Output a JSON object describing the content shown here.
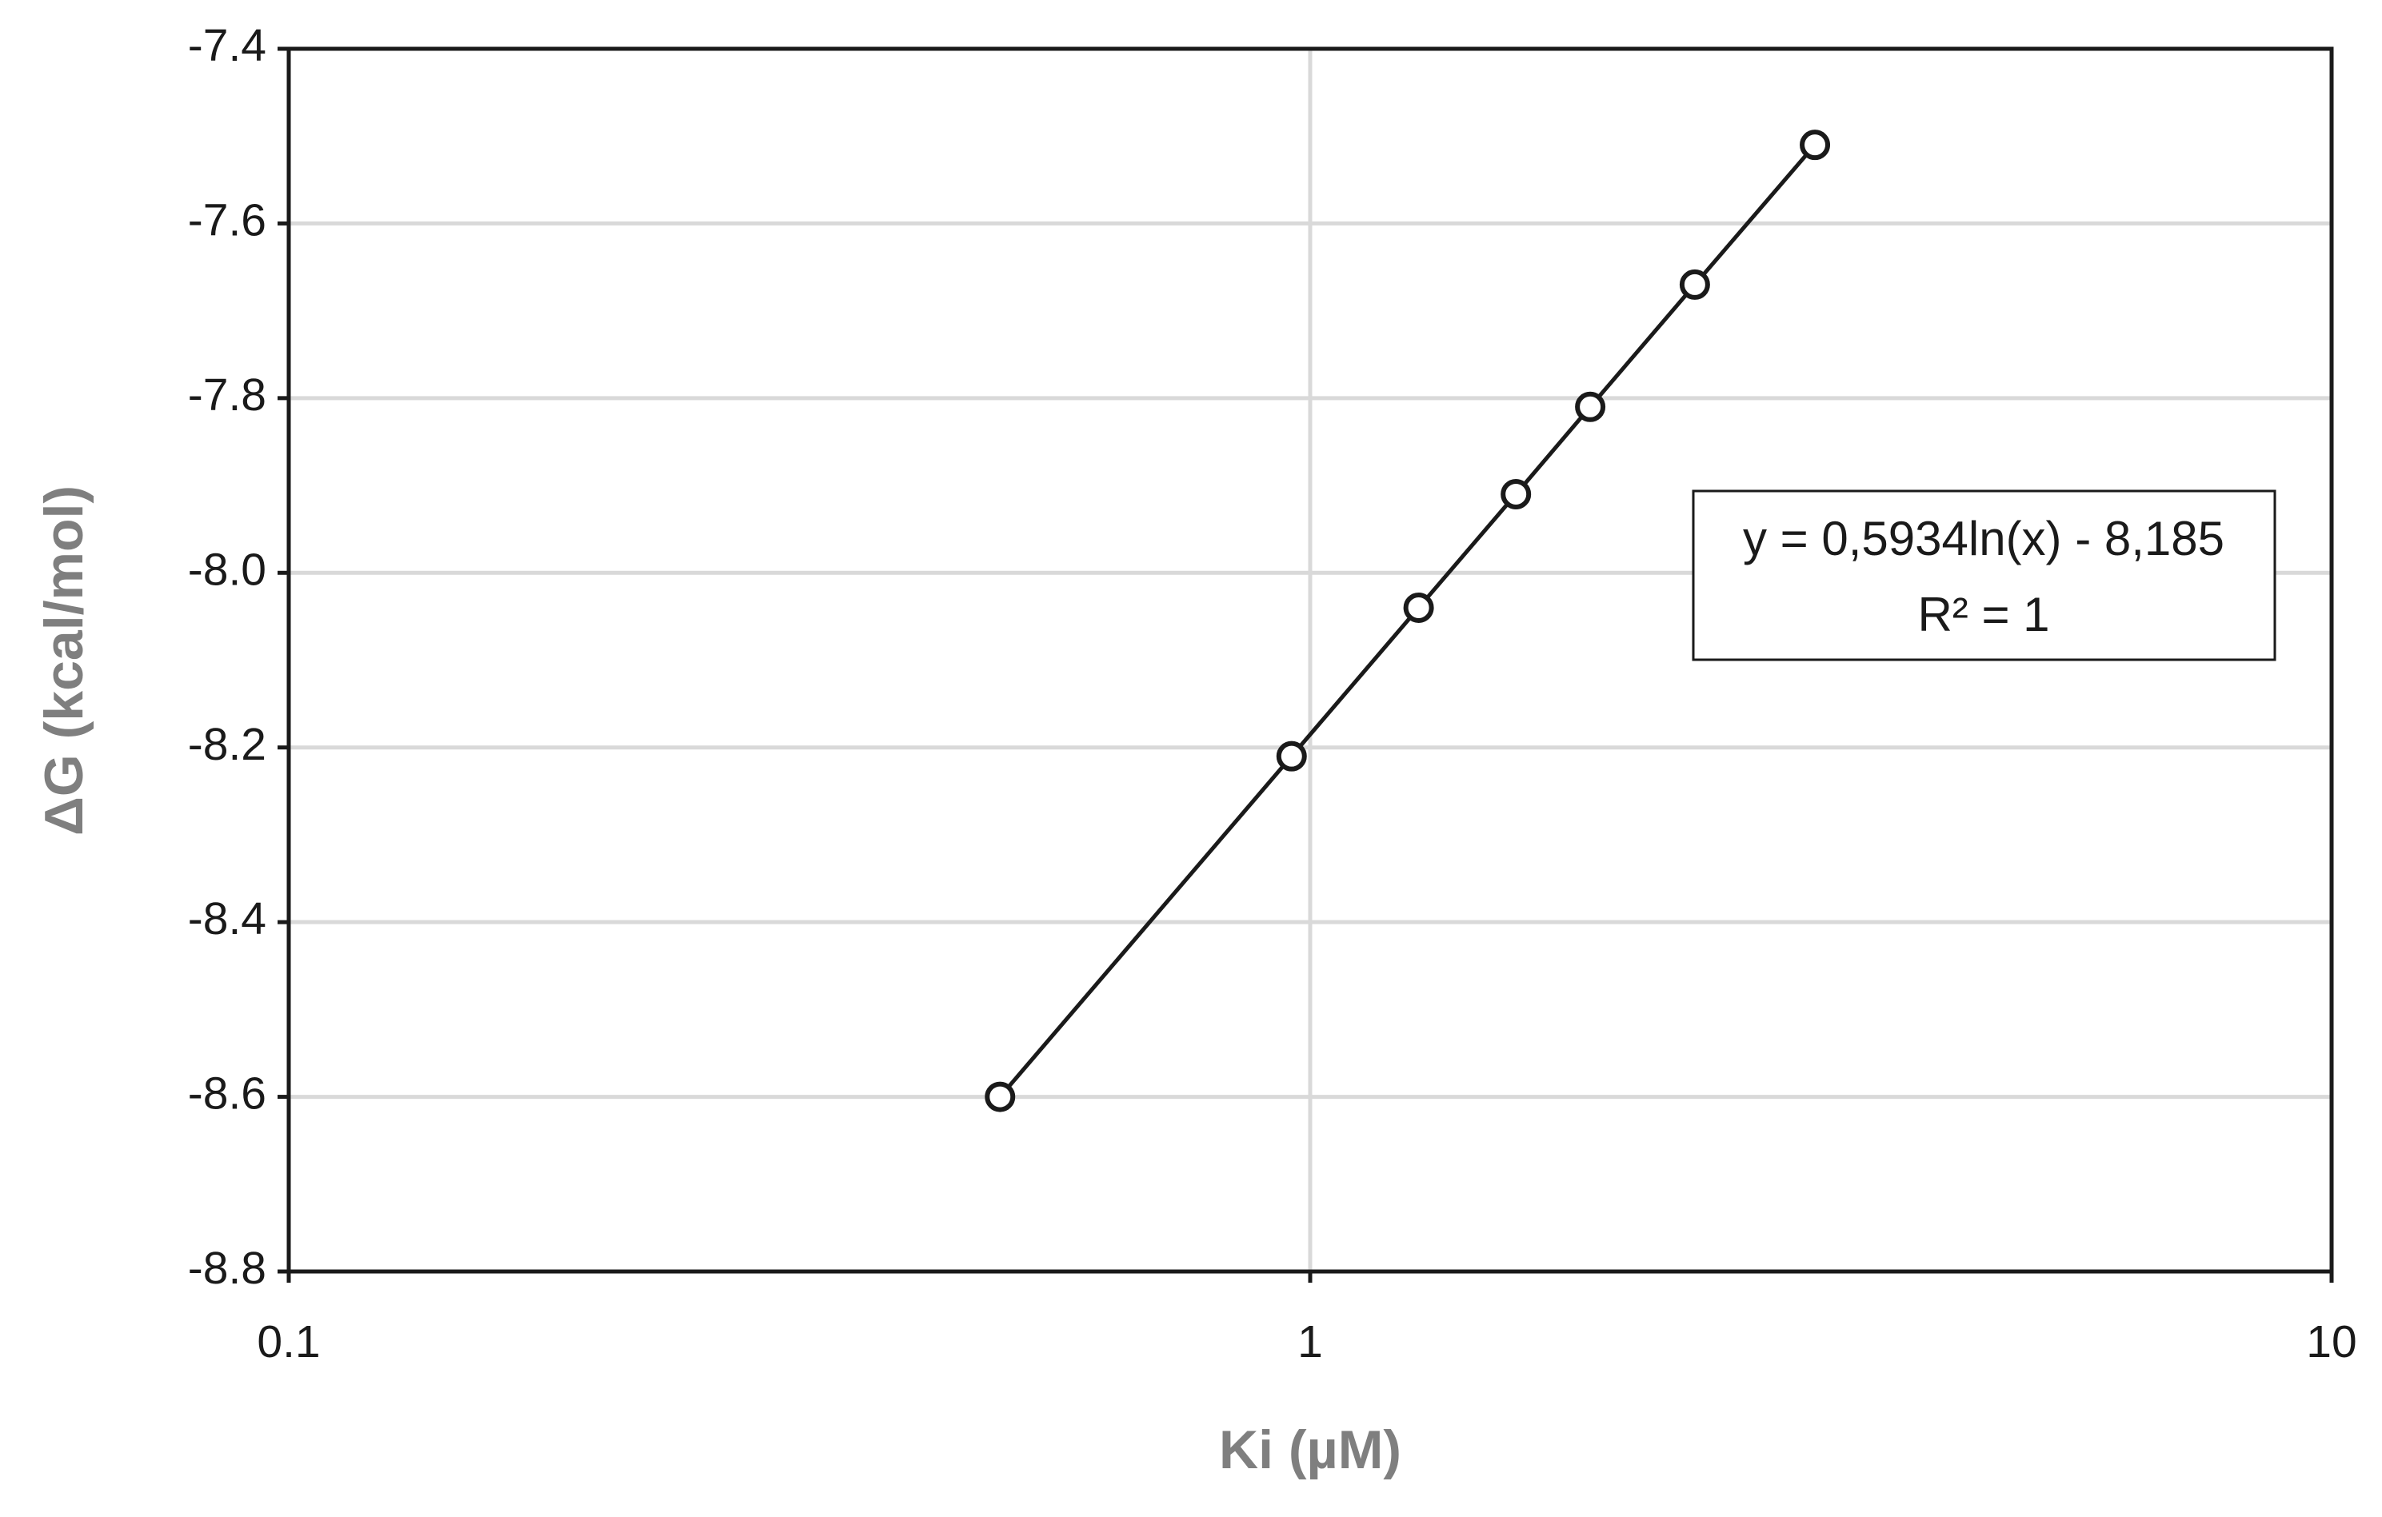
{
  "chart_data": {
    "type": "scatter",
    "x_label": "Ki (µM)",
    "y_label": "ΔG (kcal/mol)",
    "annotations": [
      "y = 0,5934ln(x) - 8,185",
      "R² = 1"
    ],
    "xscale": "log",
    "xlim": [
      0.1,
      10
    ],
    "xticks": [
      0.1,
      1,
      10
    ],
    "ylim": [
      -8.8,
      -7.4
    ],
    "yticks": [
      -7.4,
      -7.6,
      -7.8,
      {
        "value": -8,
        "label": "-8.0"
      },
      -8.2,
      -8.4,
      -8.6,
      -8.8
    ],
    "grid": true,
    "series": [
      {
        "name": null,
        "color": "#1a1a1a",
        "x": [
          0.497,
          0.959,
          1.277,
          1.59,
          1.88,
          2.38,
          3.12
        ],
        "values": [
          -8.6,
          -8.21,
          -8.04,
          -7.91,
          -7.81,
          -7.67,
          -7.51
        ]
      }
    ]
  }
}
